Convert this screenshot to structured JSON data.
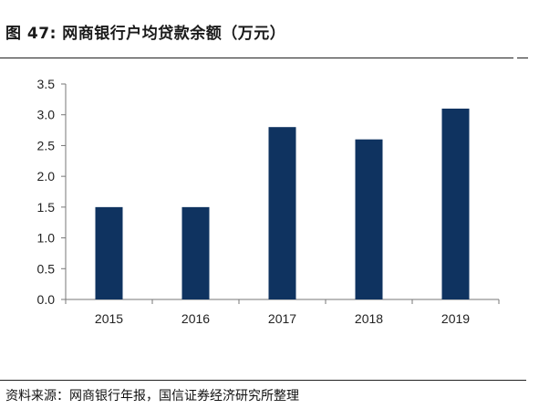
{
  "header": {
    "title": "图 47:  网商银行户均贷款余额（万元）"
  },
  "footer": {
    "source": "资料来源：网商银行年报，国信证券经济研究所整理"
  },
  "colors": {
    "bar": "#0f3360",
    "axis": "#777777"
  },
  "chart_data": {
    "type": "bar",
    "categories": [
      "2015",
      "2016",
      "2017",
      "2018",
      "2019"
    ],
    "values": [
      1.5,
      1.5,
      2.8,
      2.6,
      3.1
    ],
    "yticks": [
      "0.0",
      "0.5",
      "1.0",
      "1.5",
      "2.0",
      "2.5",
      "3.0",
      "3.5"
    ],
    "ylim": [
      0,
      3.5
    ],
    "grid": false,
    "legend": "none"
  }
}
